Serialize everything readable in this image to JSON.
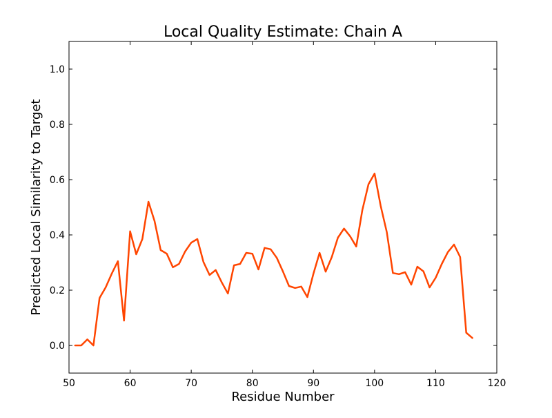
{
  "chart_data": {
    "type": "line",
    "title": "Local Quality Estimate: Chain A",
    "xlabel": "Residue Number",
    "ylabel": "Predicted Local Similarity to Target",
    "xlim": [
      50,
      120
    ],
    "ylim": [
      -0.1,
      1.1
    ],
    "xticks": [
      50,
      60,
      70,
      80,
      90,
      100,
      110,
      120
    ],
    "yticks": [
      0.0,
      0.2,
      0.4,
      0.6,
      0.8,
      1.0
    ],
    "xtick_labels": [
      "50",
      "60",
      "70",
      "80",
      "90",
      "100",
      "110",
      "120"
    ],
    "ytick_labels": [
      "0.0",
      "0.2",
      "0.4",
      "0.6",
      "0.8",
      "1.0"
    ],
    "grid": false,
    "series": [
      {
        "color": "#ff4500",
        "x": [
          51,
          52,
          53,
          54,
          55,
          56,
          57,
          58,
          59,
          60,
          61,
          62,
          63,
          64,
          65,
          66,
          67,
          68,
          69,
          70,
          71,
          72,
          73,
          74,
          75,
          76,
          77,
          78,
          79,
          80,
          81,
          82,
          83,
          84,
          85,
          86,
          87,
          88,
          89,
          90,
          91,
          92,
          93,
          94,
          95,
          96,
          97,
          98,
          99,
          100,
          101,
          102,
          103,
          104,
          105,
          106,
          107,
          108,
          109,
          110,
          111,
          112,
          113,
          114,
          115,
          116
        ],
        "y": [
          0.0,
          0.0,
          0.022,
          0.0,
          0.172,
          0.21,
          0.26,
          0.305,
          0.09,
          0.413,
          0.33,
          0.385,
          0.52,
          0.45,
          0.345,
          0.332,
          0.283,
          0.295,
          0.34,
          0.372,
          0.385,
          0.302,
          0.255,
          0.273,
          0.228,
          0.188,
          0.29,
          0.295,
          0.335,
          0.332,
          0.275,
          0.353,
          0.348,
          0.317,
          0.268,
          0.215,
          0.208,
          0.213,
          0.175,
          0.26,
          0.335,
          0.267,
          0.32,
          0.39,
          0.423,
          0.395,
          0.358,
          0.49,
          0.583,
          0.622,
          0.505,
          0.41,
          0.262,
          0.258,
          0.265,
          0.22,
          0.285,
          0.268,
          0.21,
          0.245,
          0.295,
          0.338,
          0.365,
          0.32,
          0.046,
          0.027
        ]
      }
    ]
  }
}
